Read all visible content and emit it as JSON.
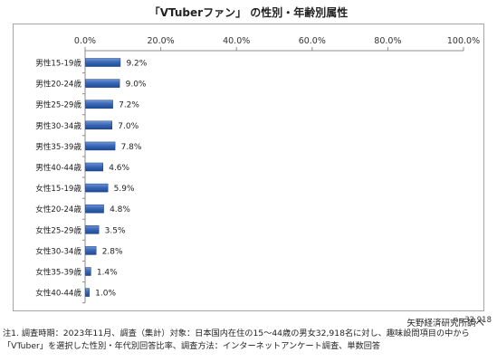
{
  "title": "「VTuberファン」 の性別・年齢別属性",
  "chart_data": {
    "type": "bar",
    "orientation": "horizontal",
    "categories": [
      "男性15-19歳",
      "男性20-24歳",
      "男性25-29歳",
      "男性30-34歳",
      "男性35-39歳",
      "男性40-44歳",
      "女性15-19歳",
      "女性20-24歳",
      "女性25-29歳",
      "女性30-34歳",
      "女性35-39歳",
      "女性40-44歳"
    ],
    "values": [
      9.2,
      9.0,
      7.2,
      7.0,
      7.8,
      4.6,
      5.9,
      4.8,
      3.5,
      2.8,
      1.4,
      1.0
    ],
    "value_labels": [
      "9.2%",
      "9.0%",
      "7.2%",
      "7.0%",
      "7.8%",
      "4.6%",
      "5.9%",
      "4.8%",
      "3.5%",
      "2.8%",
      "1.4%",
      "1.0%"
    ],
    "xlim": [
      0,
      100
    ],
    "x_ticks": [
      0,
      20,
      40,
      60,
      80,
      100
    ],
    "x_tick_labels": [
      "0.0%",
      "20.0%",
      "40.0%",
      "60.0%",
      "80.0%",
      "100.0%"
    ],
    "x_axis_position": "top",
    "grid": false,
    "bar_color": "#2f5fae",
    "annotation": "n=32,918"
  },
  "source": "矢野経済研究所調べ",
  "notes": [
    "注1. 調査時期：2023年11月、調査（集計）対象：日本国内在住の15～44歳の男女32,918名に対し、趣味設問項目の中から",
    "「VTuber」を選択した性別・年代別回答比率、調査方法：インターネットアンケート調査、単数回答"
  ]
}
